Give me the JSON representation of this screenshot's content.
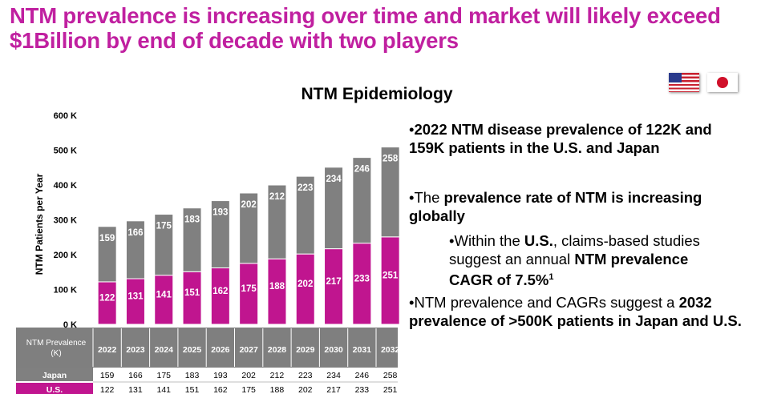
{
  "title": "NTM prevalence is increasing over time and market will likely exceed $1Billion by end of decade with two players",
  "flags": [
    "us-flag-icon",
    "japan-flag-icon"
  ],
  "colors": {
    "japan": "#808080",
    "us": "#c0158f",
    "title": "#c020a0"
  },
  "chart_data": {
    "type": "bar",
    "stacked": true,
    "title": "NTM Epidemiology",
    "ylabel": "NTM Patients per Year",
    "xlabel": "",
    "ylim": [
      0,
      600
    ],
    "yticks": [
      "0 K",
      "100 K",
      "200 K",
      "300 K",
      "400 K",
      "500 K",
      "600 K"
    ],
    "categories": [
      "2022",
      "2023",
      "2024",
      "2025",
      "2026",
      "2027",
      "2028",
      "2029",
      "2030",
      "2031",
      "2032"
    ],
    "series": [
      {
        "name": "U.S.",
        "values": [
          122,
          131,
          141,
          151,
          162,
          175,
          188,
          202,
          217,
          233,
          251
        ]
      },
      {
        "name": "Japan",
        "values": [
          159,
          166,
          175,
          183,
          193,
          202,
          212,
          223,
          234,
          246,
          258
        ]
      }
    ],
    "table": {
      "header": "NTM Prevalence",
      "unit": "(K)"
    }
  },
  "bullets": [
    {
      "prefix": "•",
      "parts": [
        {
          "text": "2022 NTM disease prevalence of 122K and 159K patients in the U.S. and Japan",
          "bold": true
        }
      ]
    },
    {
      "prefix": "•",
      "parts": [
        {
          "text": "The ",
          "bold": false
        },
        {
          "text": "prevalence rate of NTM is increasing globally",
          "bold": true
        }
      ]
    },
    {
      "prefix": "•",
      "parts": [
        {
          "text": "Within the ",
          "bold": false
        },
        {
          "text": "U.S.",
          "bold": true
        },
        {
          "text": ", claims-based studies suggest an annual ",
          "bold": false
        },
        {
          "text": "NTM prevalence CAGR of 7.5%",
          "bold": true
        },
        {
          "text": "1",
          "bold": true,
          "sup": true
        }
      ]
    },
    {
      "prefix": "•",
      "parts": [
        {
          "text": "NTM prevalence and CAGRs suggest a ",
          "bold": false
        },
        {
          "text": "2032 prevalence of >500K patients in Japan and U.S.",
          "bold": true
        }
      ]
    }
  ]
}
